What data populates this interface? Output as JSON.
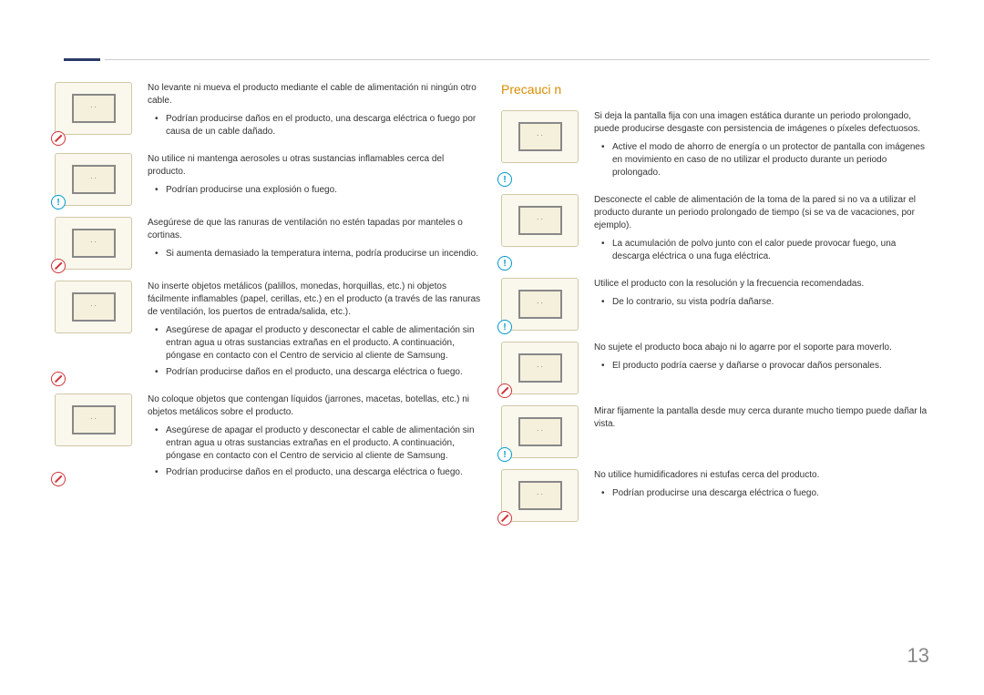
{
  "page_number": "13",
  "column1": {
    "items": [
      {
        "badge": "prohibit",
        "main": "No levante ni mueva el producto mediante el cable de alimentación ni ningún otro cable.",
        "bullets": [
          "Podrían producirse daños en el producto, una descarga eléctrica o fuego por causa de un cable dañado."
        ]
      },
      {
        "badge": "info",
        "main": "No utilice ni mantenga aerosoles u otras sustancias inflamables cerca del producto.",
        "bullets": [
          "Podrían producirse una explosión o fuego."
        ]
      },
      {
        "badge": "prohibit",
        "main": "Asegúrese de que las ranuras de ventilación no estén tapadas por manteles o cortinas.",
        "bullets": [
          "Si aumenta demasiado la temperatura interna, podría producirse un incendio."
        ]
      },
      {
        "badge": "prohibit",
        "main": "No inserte objetos metálicos (palillos, monedas, horquillas, etc.) ni objetos fácilmente inflamables (papel, cerillas, etc.) en el producto (a través de las ranuras de ventilación, los puertos de entrada/salida, etc.).",
        "bullets": [
          "Asegúrese de apagar el producto y desconectar el cable de alimentación sin entran agua u otras sustancias extrañas en el producto. A continuación, póngase en contacto con el Centro de servicio al cliente de Samsung.",
          "Podrían producirse daños en el producto, una descarga eléctrica o fuego."
        ]
      },
      {
        "badge": "prohibit",
        "main": "No coloque objetos que contengan líquidos (jarrones, macetas, botellas, etc.) ni objetos metálicos sobre el producto.",
        "bullets": [
          "Asegúrese de apagar el producto y desconectar el cable de alimentación sin entran agua u otras sustancias extrañas en el producto. A continuación, póngase en contacto con el Centro de servicio al cliente de Samsung.",
          "Podrían producirse daños en el producto, una descarga eléctrica o fuego."
        ]
      }
    ]
  },
  "column2": {
    "title": "Precauci n",
    "items": [
      {
        "badge": "info",
        "main": "Si deja la pantalla fija con una imagen estática durante un periodo prolongado, puede producirse desgaste con persistencia de imágenes o píxeles defectuosos.",
        "bullets": [
          "Active el modo de ahorro de energía o un protector de pantalla con imágenes en movimiento en caso de no utilizar el producto durante un periodo prolongado."
        ]
      },
      {
        "badge": "info",
        "main": "Desconecte el cable de alimentación de la toma de la pared si no va a utilizar el producto durante un periodo prolongado de tiempo (si se va de vacaciones, por ejemplo).",
        "bullets": [
          "La acumulación de polvo junto con el calor puede provocar fuego, una descarga eléctrica o una fuga eléctrica."
        ]
      },
      {
        "badge": "info",
        "main": "Utilice el producto con la resolución y la frecuencia recomendadas.",
        "bullets": [
          "De lo contrario, su vista podría dañarse."
        ]
      },
      {
        "badge": "prohibit",
        "main": "No sujete el producto boca abajo ni lo agarre por el soporte para moverlo.",
        "bullets": [
          "El producto podría caerse y dañarse o provocar daños personales."
        ]
      },
      {
        "badge": "info",
        "main": "Mirar fijamente la pantalla desde muy cerca durante mucho tiempo puede dañar la vista.",
        "bullets": []
      },
      {
        "badge": "prohibit",
        "main": "No utilice humidificadores ni estufas cerca del producto.",
        "bullets": [
          "Podrían producirse una descarga eléctrica o fuego."
        ]
      }
    ]
  }
}
